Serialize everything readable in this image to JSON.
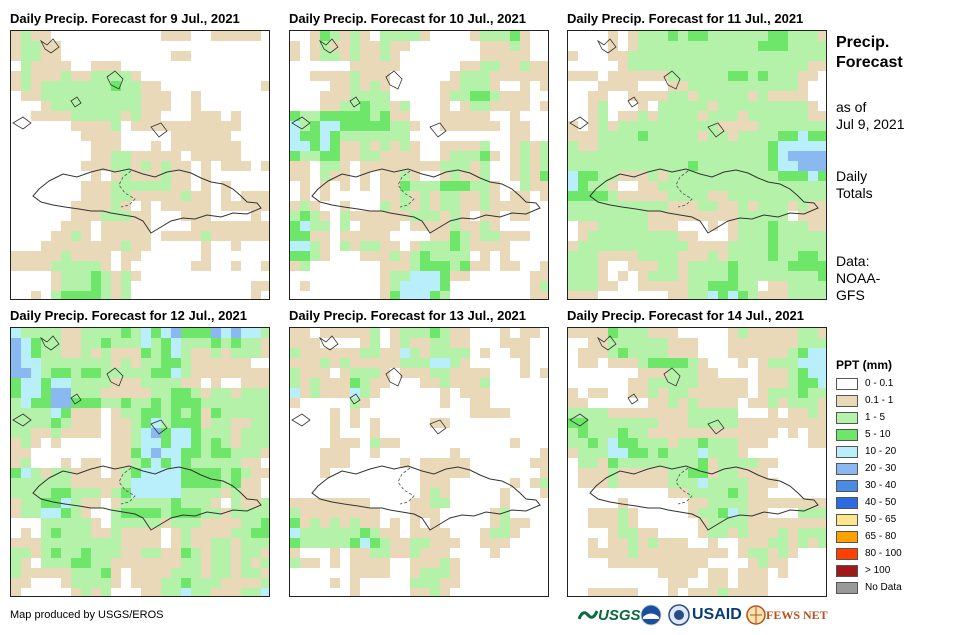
{
  "panels": [
    {
      "title": "Daily Precip. Forecast for 9 Jul., 2021"
    },
    {
      "title": "Daily Precip. Forecast for 10 Jul., 2021"
    },
    {
      "title": "Daily Precip. Forecast for 11 Jul., 2021"
    },
    {
      "title": "Daily Precip. Forecast for 12 Jul., 2021"
    },
    {
      "title": "Daily Precip. Forecast for 13 Jul., 2021"
    },
    {
      "title": "Daily Precip. Forecast for 14 Jul., 2021"
    }
  ],
  "side": {
    "title_line1": "Precip.",
    "title_line2": "Forecast",
    "asof_line1": "as of",
    "asof_line2": "Jul 9, 2021",
    "totals_line1": "Daily",
    "totals_line2": "Totals",
    "data_line1": "Data:",
    "data_line2": "NOAA-",
    "data_line3": "GFS"
  },
  "legend": {
    "title": "PPT (mm)",
    "items": [
      {
        "label": "0 - 0.1",
        "color": "#ffffff"
      },
      {
        "label": "0.1 - 1",
        "color": "#ead9b9"
      },
      {
        "label": "1 - 5",
        "color": "#b3f2a8"
      },
      {
        "label": "5 - 10",
        "color": "#6ee66a"
      },
      {
        "label": "10 - 20",
        "color": "#b9eefb"
      },
      {
        "label": "20 - 30",
        "color": "#8ab8f0"
      },
      {
        "label": "30 - 40",
        "color": "#4a8be6"
      },
      {
        "label": "40 - 50",
        "color": "#2c6be0"
      },
      {
        "label": "50 - 65",
        "color": "#ffe68a"
      },
      {
        "label": "65 - 80",
        "color": "#ffa200"
      },
      {
        "label": "80 - 100",
        "color": "#ff4000"
      },
      {
        "label": "> 100",
        "color": "#a01818"
      },
      {
        "label": "No Data",
        "color": "#999999"
      }
    ]
  },
  "credit": "Map produced by USGS/EROS",
  "logos": {
    "usgs": "USGS",
    "usaid": "USAID",
    "fewsnet": "FEWS NET"
  }
}
